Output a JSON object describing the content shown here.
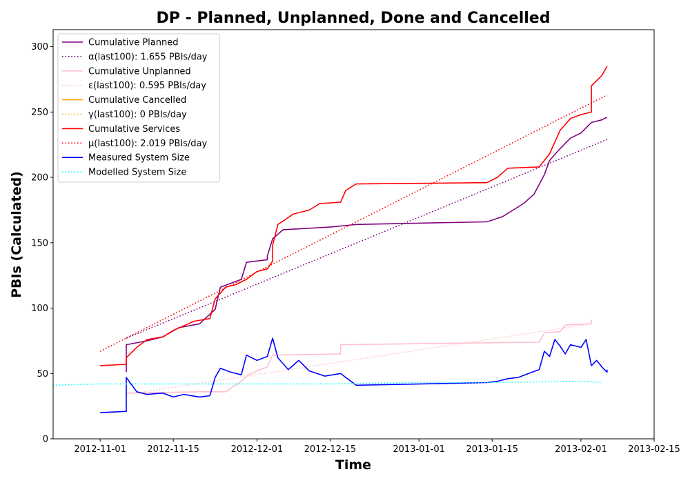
{
  "chart_data": {
    "type": "line",
    "title": "DP - Planned, Unplanned, Done  and Cancelled",
    "xlabel": "Time",
    "ylabel": "PBIs (Calculated)",
    "xlim": [
      "2012-10-23",
      "2013-02-15"
    ],
    "ylim": [
      0,
      313
    ],
    "x_ticks": [
      "2012-11-01",
      "2012-11-15",
      "2012-12-01",
      "2012-12-15",
      "2013-01-01",
      "2013-01-15",
      "2013-02-01",
      "2013-02-15"
    ],
    "y_ticks": [
      0,
      50,
      100,
      150,
      200,
      250,
      300
    ],
    "grid": false,
    "legend_position": "upper-left",
    "series": [
      {
        "name": "Cumulative Planned",
        "color": "#800080",
        "style": "solid",
        "points": [
          [
            "2012-11-06",
            51
          ],
          [
            "2012-11-06",
            72
          ],
          [
            "2012-11-10",
            75
          ],
          [
            "2012-11-13",
            78
          ],
          [
            "2012-11-16",
            85
          ],
          [
            "2012-11-20",
            88
          ],
          [
            "2012-11-23",
            99
          ],
          [
            "2012-11-24",
            116
          ],
          [
            "2012-11-28",
            122
          ],
          [
            "2012-11-29",
            135
          ],
          [
            "2012-12-03",
            137
          ],
          [
            "2012-12-03",
            140
          ],
          [
            "2012-12-04",
            153
          ],
          [
            "2012-12-06",
            160
          ],
          [
            "2012-12-15",
            162
          ],
          [
            "2012-12-20",
            164
          ],
          [
            "2013-01-01",
            165
          ],
          [
            "2013-01-14",
            166
          ],
          [
            "2013-01-17",
            170
          ],
          [
            "2013-01-19",
            175
          ],
          [
            "2013-01-21",
            180
          ],
          [
            "2013-01-23",
            187
          ],
          [
            "2013-01-25",
            202
          ],
          [
            "2013-01-26",
            213
          ],
          [
            "2013-01-28",
            222
          ],
          [
            "2013-01-30",
            230
          ],
          [
            "2013-02-01",
            234
          ],
          [
            "2013-02-03",
            242
          ],
          [
            "2013-02-05",
            244
          ],
          [
            "2013-02-06",
            246
          ]
        ]
      },
      {
        "name": "α(last100): 1.655 PBIs/day",
        "color": "#800080",
        "style": "dotted",
        "points": [
          [
            "2012-11-06",
            77
          ],
          [
            "2013-02-06",
            229
          ]
        ]
      },
      {
        "name": "Cumulative Unplanned",
        "color": "#ffc0cb",
        "style": "solid",
        "points": [
          [
            "2012-11-06",
            35
          ],
          [
            "2012-11-20",
            36
          ],
          [
            "2012-11-25",
            36
          ],
          [
            "2012-11-28",
            44
          ],
          [
            "2012-11-29",
            48
          ],
          [
            "2012-12-01",
            52
          ],
          [
            "2012-12-03",
            55
          ],
          [
            "2012-12-04",
            64
          ],
          [
            "2012-12-17",
            65
          ],
          [
            "2012-12-17",
            72
          ],
          [
            "2013-01-24",
            74
          ],
          [
            "2013-01-25",
            81
          ],
          [
            "2013-01-28",
            82
          ],
          [
            "2013-01-29",
            87
          ],
          [
            "2013-02-03",
            88
          ],
          [
            "2013-02-03",
            91
          ]
        ]
      },
      {
        "name": "ε(last100): 0.595 PBIs/day",
        "color": "#ffc0cb",
        "style": "dotted",
        "points": [
          [
            "2012-11-06",
            34
          ],
          [
            "2013-02-03",
            88
          ]
        ]
      },
      {
        "name": "Cumulative Cancelled",
        "color": "#ffa500",
        "style": "solid",
        "points": []
      },
      {
        "name": "γ(last100): 0 PBIs/day",
        "color": "#ffa500",
        "style": "dotted",
        "points": []
      },
      {
        "name": "Cumulative Services",
        "color": "#ff0000",
        "style": "solid",
        "points": [
          [
            "2012-11-01",
            56
          ],
          [
            "2012-11-06",
            57
          ],
          [
            "2012-11-06",
            62
          ],
          [
            "2012-11-08",
            70
          ],
          [
            "2012-11-10",
            76
          ],
          [
            "2012-11-13",
            78
          ],
          [
            "2012-11-15",
            83
          ],
          [
            "2012-11-19",
            90
          ],
          [
            "2012-11-22",
            92
          ],
          [
            "2012-11-23",
            107
          ],
          [
            "2012-11-25",
            116
          ],
          [
            "2012-11-27",
            118
          ],
          [
            "2012-11-29",
            122
          ],
          [
            "2012-12-01",
            128
          ],
          [
            "2012-12-03",
            130
          ],
          [
            "2012-12-04",
            136
          ],
          [
            "2012-12-04",
            148
          ],
          [
            "2012-12-05",
            164
          ],
          [
            "2012-12-08",
            172
          ],
          [
            "2012-12-11",
            175
          ],
          [
            "2012-12-13",
            180
          ],
          [
            "2012-12-17",
            181
          ],
          [
            "2012-12-18",
            190
          ],
          [
            "2012-12-20",
            195
          ],
          [
            "2013-01-14",
            196
          ],
          [
            "2013-01-16",
            200
          ],
          [
            "2013-01-18",
            207
          ],
          [
            "2013-01-24",
            208
          ],
          [
            "2013-01-26",
            218
          ],
          [
            "2013-01-28",
            236
          ],
          [
            "2013-01-30",
            245
          ],
          [
            "2013-02-01",
            248
          ],
          [
            "2013-02-03",
            250
          ],
          [
            "2013-02-03",
            270
          ],
          [
            "2013-02-05",
            278
          ],
          [
            "2013-02-06",
            285
          ]
        ]
      },
      {
        "name": "μ(last100): 2.019 PBIs/day",
        "color": "#ff0000",
        "style": "dotted",
        "points": [
          [
            "2012-11-01",
            67
          ],
          [
            "2013-02-06",
            263
          ]
        ]
      },
      {
        "name": "Measured System Size",
        "color": "#0000ff",
        "style": "solid",
        "points": [
          [
            "2012-11-01",
            20
          ],
          [
            "2012-11-06",
            21
          ],
          [
            "2012-11-06",
            47
          ],
          [
            "2012-11-08",
            36
          ],
          [
            "2012-11-10",
            34
          ],
          [
            "2012-11-13",
            35
          ],
          [
            "2012-11-15",
            32
          ],
          [
            "2012-11-17",
            34
          ],
          [
            "2012-11-20",
            32
          ],
          [
            "2012-11-22",
            33
          ],
          [
            "2012-11-23",
            47
          ],
          [
            "2012-11-24",
            54
          ],
          [
            "2012-11-26",
            51
          ],
          [
            "2012-11-28",
            49
          ],
          [
            "2012-11-29",
            64
          ],
          [
            "2012-12-01",
            60
          ],
          [
            "2012-12-03",
            63
          ],
          [
            "2012-12-04",
            77
          ],
          [
            "2012-12-05",
            62
          ],
          [
            "2012-12-07",
            53
          ],
          [
            "2012-12-09",
            60
          ],
          [
            "2012-12-11",
            52
          ],
          [
            "2012-12-14",
            48
          ],
          [
            "2012-12-17",
            50
          ],
          [
            "2012-12-18",
            47
          ],
          [
            "2012-12-20",
            41
          ],
          [
            "2013-01-14",
            43
          ],
          [
            "2013-01-16",
            44
          ],
          [
            "2013-01-18",
            46
          ],
          [
            "2013-01-20",
            47
          ],
          [
            "2013-01-22",
            50
          ],
          [
            "2013-01-24",
            53
          ],
          [
            "2013-01-25",
            67
          ],
          [
            "2013-01-26",
            63
          ],
          [
            "2013-01-27",
            76
          ],
          [
            "2013-01-28",
            71
          ],
          [
            "2013-01-29",
            65
          ],
          [
            "2013-01-30",
            72
          ],
          [
            "2013-02-01",
            70
          ],
          [
            "2013-02-02",
            76
          ],
          [
            "2013-02-03",
            56
          ],
          [
            "2013-02-04",
            60
          ],
          [
            "2013-02-05",
            55
          ],
          [
            "2013-02-06",
            51
          ],
          [
            "2013-02-06",
            53
          ]
        ]
      },
      {
        "name": "Modelled System Size",
        "color": "#00ffff",
        "style": "dotted",
        "points": [
          [
            "2012-10-23",
            41
          ],
          [
            "2012-11-01",
            42
          ],
          [
            "2012-11-15",
            42
          ],
          [
            "2012-12-01",
            42
          ],
          [
            "2012-12-15",
            42
          ],
          [
            "2013-01-01",
            43
          ],
          [
            "2013-01-15",
            43
          ],
          [
            "2013-02-01",
            44
          ],
          [
            "2013-02-05",
            43
          ]
        ]
      }
    ]
  }
}
